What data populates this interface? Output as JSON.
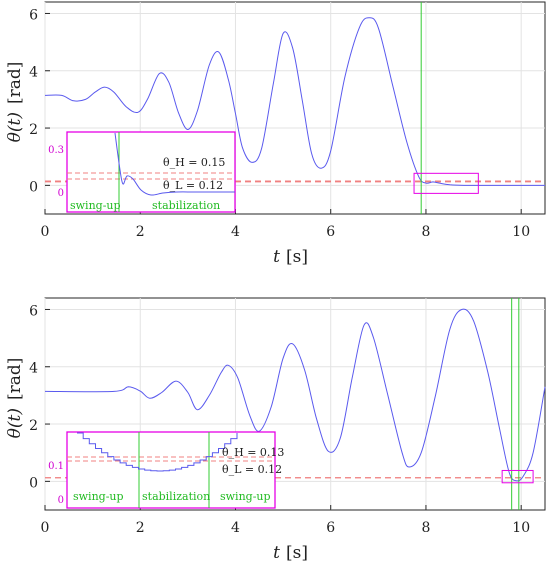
{
  "chart_data": [
    {
      "type": "line",
      "xlabel_symbol": "t",
      "xlabel_unit": "[s]",
      "ylabel_symbol": "θ(t)",
      "ylabel_unit": "[rad]",
      "xlim": [
        0,
        10.5
      ],
      "ylim": [
        -1,
        6.4
      ],
      "xticks": [
        0,
        2,
        4,
        6,
        8,
        10
      ],
      "yticks": [
        0,
        2,
        4,
        6
      ],
      "grid": true,
      "colors": {
        "trajectory": "#5a5aee",
        "switch": "#33cc33",
        "threshold": "#f08080",
        "inset": "#e600e6"
      },
      "series": [
        {
          "values": [
            [
              0,
              3.14
            ],
            [
              0.35,
              3.14
            ],
            [
              0.6,
              2.95
            ],
            [
              0.85,
              3.0
            ],
            [
              1.05,
              3.25
            ],
            [
              1.25,
              3.43
            ],
            [
              1.45,
              3.25
            ],
            [
              1.7,
              2.75
            ],
            [
              1.95,
              2.55
            ],
            [
              2.15,
              3.0
            ],
            [
              2.4,
              3.9
            ],
            [
              2.6,
              3.6
            ],
            [
              2.8,
              2.55
            ],
            [
              3.0,
              1.95
            ],
            [
              3.2,
              2.6
            ],
            [
              3.45,
              4.2
            ],
            [
              3.65,
              4.65
            ],
            [
              3.85,
              3.7
            ],
            [
              4.0,
              2.5
            ],
            [
              4.15,
              1.3
            ],
            [
              4.35,
              0.8
            ],
            [
              4.55,
              1.3
            ],
            [
              4.8,
              3.6
            ],
            [
              5.0,
              5.3
            ],
            [
              5.2,
              4.8
            ],
            [
              5.4,
              3.0
            ],
            [
              5.6,
              1.1
            ],
            [
              5.8,
              0.6
            ],
            [
              6.0,
              1.2
            ],
            [
              6.3,
              3.8
            ],
            [
              6.6,
              5.5
            ],
            [
              6.8,
              5.85
            ],
            [
              7.0,
              5.5
            ],
            [
              7.3,
              3.5
            ],
            [
              7.6,
              1.5
            ],
            [
              7.85,
              0.3
            ],
            [
              8.0,
              0.08
            ],
            [
              8.15,
              0.12
            ],
            [
              8.3,
              0.07
            ],
            [
              8.5,
              0.02
            ],
            [
              8.8,
              0.0
            ],
            [
              9.2,
              0.0
            ],
            [
              10.5,
              0.0
            ]
          ]
        }
      ],
      "switch_times": [
        7.9
      ],
      "threshold_high": 0.15,
      "threshold_low": 0.12,
      "inset": {
        "yticks": [
          "0.3",
          "0"
        ],
        "theta_h_label": "θ_H = 0.15",
        "theta_l_label": "θ_L = 0.12",
        "zones": [
          "swing-up",
          "stabilization"
        ]
      }
    },
    {
      "type": "line",
      "xlabel_symbol": "t",
      "xlabel_unit": "[s]",
      "ylabel_symbol": "θ(t)",
      "ylabel_unit": "[rad]",
      "xlim": [
        0,
        10.5
      ],
      "ylim": [
        -1,
        6.4
      ],
      "xticks": [
        0,
        2,
        4,
        6,
        8,
        10
      ],
      "yticks": [
        0,
        2,
        4,
        6
      ],
      "grid": true,
      "colors": {
        "trajectory": "#5a5aee",
        "switch": "#33cc33",
        "threshold": "#f08080",
        "inset": "#e600e6"
      },
      "series": [
        {
          "values": [
            [
              0,
              3.14
            ],
            [
              1.45,
              3.14
            ],
            [
              1.75,
              3.3
            ],
            [
              2.0,
              3.15
            ],
            [
              2.2,
              2.9
            ],
            [
              2.45,
              3.1
            ],
            [
              2.75,
              3.5
            ],
            [
              3.0,
              3.1
            ],
            [
              3.2,
              2.5
            ],
            [
              3.45,
              3.0
            ],
            [
              3.7,
              3.8
            ],
            [
              3.85,
              4.05
            ],
            [
              4.05,
              3.6
            ],
            [
              4.3,
              2.3
            ],
            [
              4.5,
              1.75
            ],
            [
              4.75,
              2.6
            ],
            [
              5.0,
              4.3
            ],
            [
              5.2,
              4.8
            ],
            [
              5.45,
              3.9
            ],
            [
              5.7,
              2.2
            ],
            [
              5.95,
              1.05
            ],
            [
              6.2,
              1.5
            ],
            [
              6.45,
              3.6
            ],
            [
              6.7,
              5.45
            ],
            [
              6.9,
              5.0
            ],
            [
              7.2,
              3.0
            ],
            [
              7.5,
              1.0
            ],
            [
              7.65,
              0.5
            ],
            [
              7.9,
              1.0
            ],
            [
              8.2,
              3.0
            ],
            [
              8.5,
              5.3
            ],
            [
              8.75,
              6.0
            ],
            [
              9.0,
              5.6
            ],
            [
              9.3,
              3.8
            ],
            [
              9.55,
              1.8
            ],
            [
              9.75,
              0.3
            ],
            [
              9.9,
              0.02
            ],
            [
              10.05,
              0.2
            ],
            [
              10.25,
              1.0
            ],
            [
              10.5,
              3.3
            ]
          ]
        }
      ],
      "switch_times": [
        9.8,
        9.95
      ],
      "threshold_high": 0.13,
      "threshold_low": 0.12,
      "inset": {
        "yticks": [
          "0.1",
          "0"
        ],
        "theta_h_label": "θ_H = 0.13",
        "theta_l_label": "θ_L = 0.12",
        "zones": [
          "swing-up",
          "stabilization",
          "swing-up"
        ]
      }
    }
  ]
}
